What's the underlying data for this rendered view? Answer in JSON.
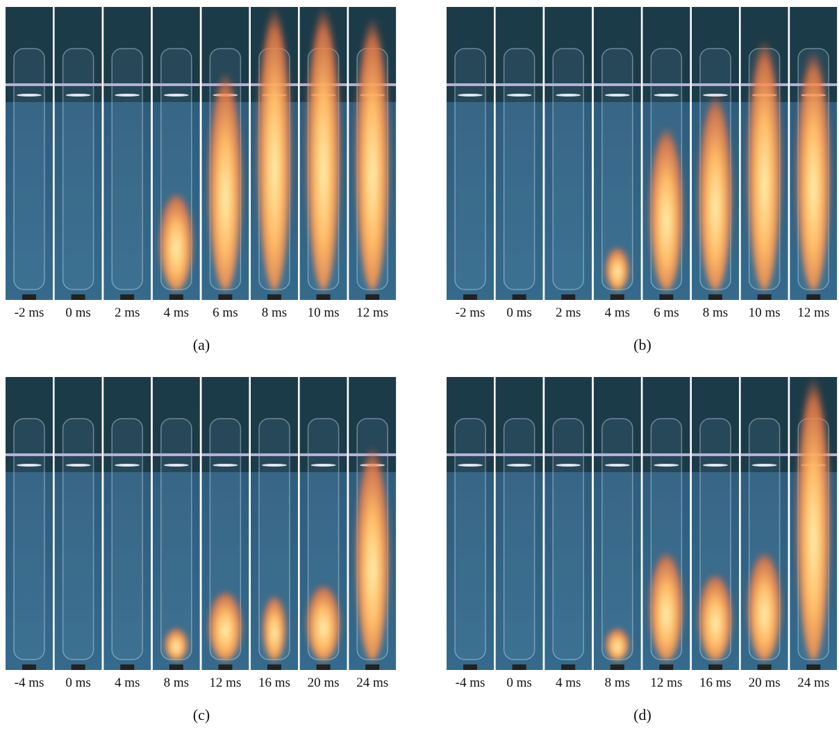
{
  "panels": [
    {
      "label": "(a)",
      "frames": [
        "-2 ms",
        "0 ms",
        "2 ms",
        "4 ms",
        "6 ms",
        "8 ms",
        "10 ms",
        "12 ms"
      ]
    },
    {
      "label": "(b)",
      "frames": [
        "-2 ms",
        "0 ms",
        "2 ms",
        "4 ms",
        "6 ms",
        "8 ms",
        "10 ms",
        "12 ms"
      ]
    },
    {
      "label": "(c)",
      "frames": [
        "-4 ms",
        "0 ms",
        "4 ms",
        "8 ms",
        "12 ms",
        "16 ms",
        "20 ms",
        "24 ms"
      ]
    },
    {
      "label": "(d)",
      "frames": [
        "-4 ms",
        "0 ms",
        "4 ms",
        "8 ms",
        "12 ms",
        "16 ms",
        "20 ms",
        "24 ms"
      ]
    }
  ]
}
